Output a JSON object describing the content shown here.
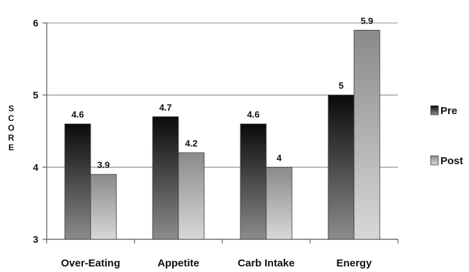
{
  "chart_data": {
    "type": "bar",
    "categories": [
      "Over-Eating",
      "Appetite",
      "Carb Intake",
      "Energy"
    ],
    "series": [
      {
        "name": "Pre",
        "values": [
          4.6,
          4.7,
          4.6,
          5
        ],
        "labels": [
          "4.6",
          "4.7",
          "4.6",
          "5"
        ],
        "color_top": "#0a0a0a",
        "color_bottom": "#8c8c8c"
      },
      {
        "name": "Post",
        "values": [
          3.9,
          4.2,
          4,
          5.9
        ],
        "labels": [
          "3.9",
          "4.2",
          "4",
          "5.9"
        ],
        "color_top": "#8a8a8a",
        "color_bottom": "#d8d8d8"
      }
    ],
    "ylabel": "SCORE",
    "ylim": [
      3,
      6
    ],
    "yticks": [
      "3",
      "4",
      "5",
      "6"
    ],
    "grid": true,
    "legend_position": "right"
  }
}
